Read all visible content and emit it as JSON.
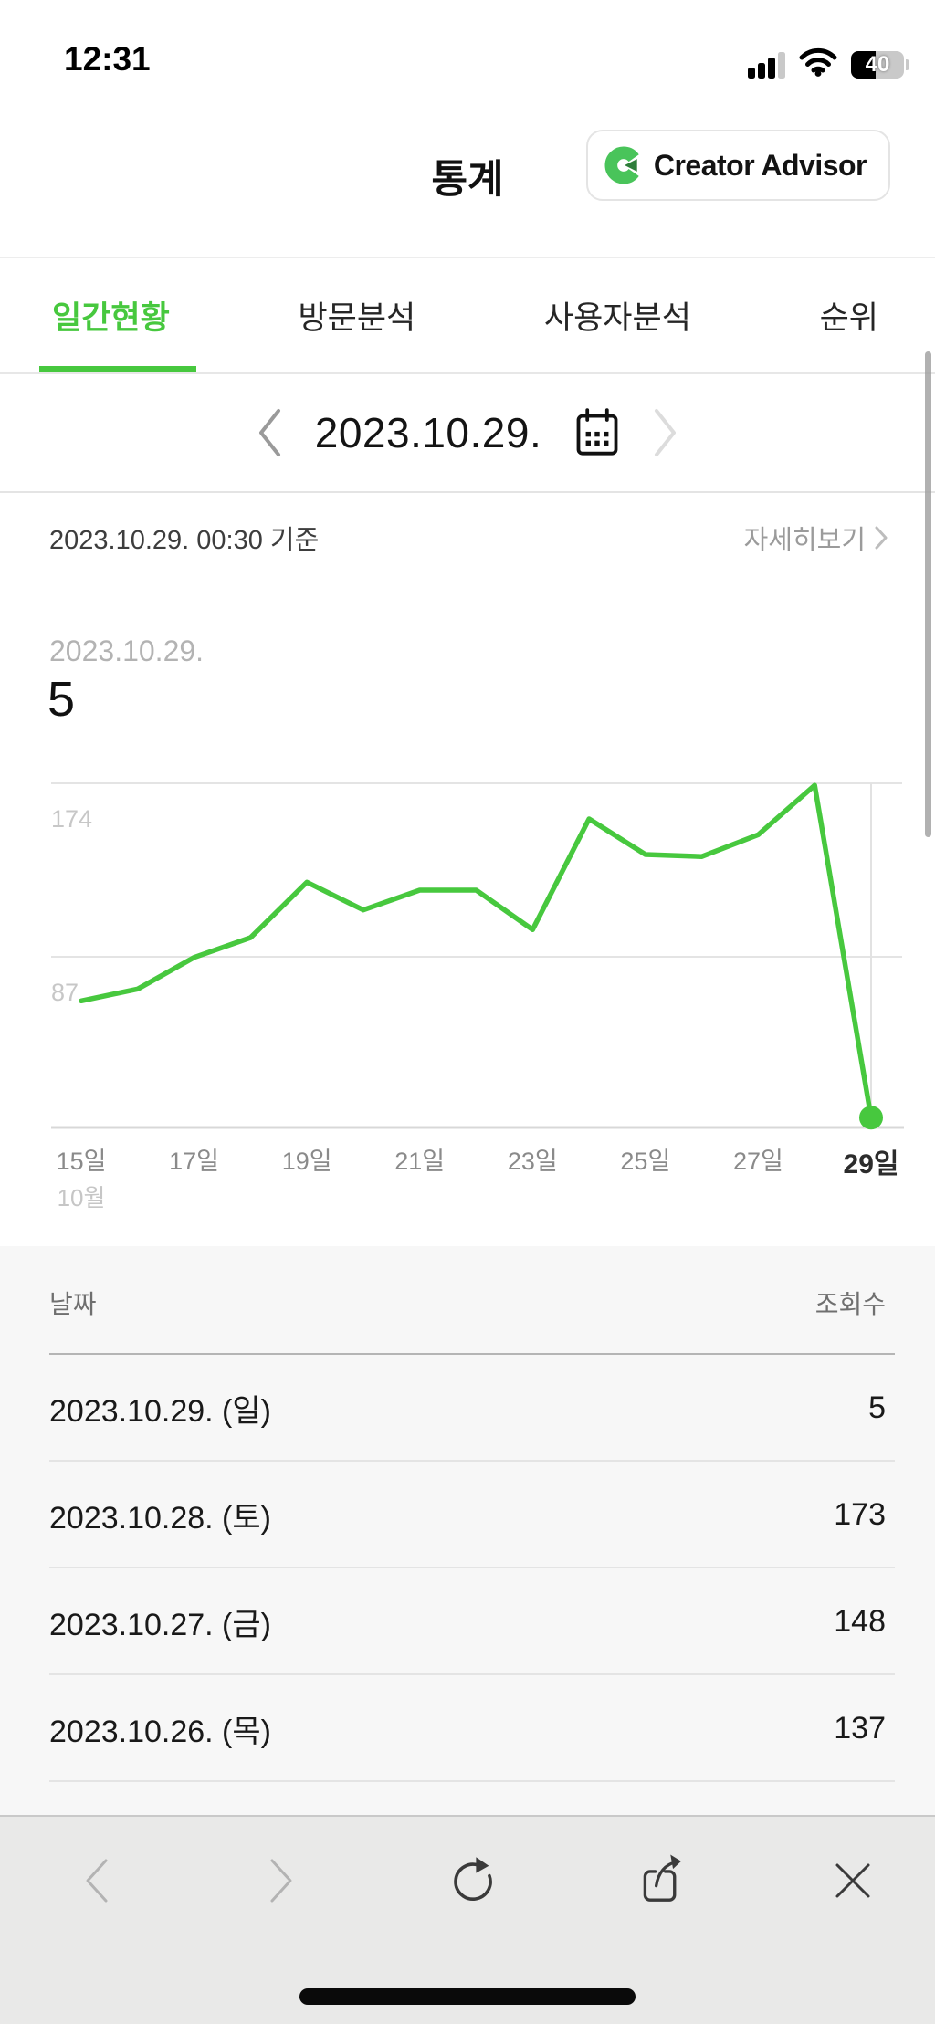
{
  "status_bar": {
    "time": "12:31",
    "battery_percent": "40"
  },
  "header": {
    "title": "통계",
    "advisor_button_label": "Creator Advisor"
  },
  "tabs": {
    "active_index": 0,
    "items": [
      {
        "label": "일간현황"
      },
      {
        "label": "방문분석"
      },
      {
        "label": "사용자분석"
      },
      {
        "label": "순위"
      }
    ]
  },
  "date_nav": {
    "date": "2023.10.29."
  },
  "info_bar": {
    "reference": "2023.10.29. 00:30 기준",
    "detail_link": "자세히보기"
  },
  "summary": {
    "date": "2023.10.29.",
    "value": "5"
  },
  "chart_data": {
    "type": "line",
    "x_days": [
      15,
      16,
      17,
      18,
      19,
      20,
      21,
      22,
      23,
      24,
      25,
      26,
      27,
      28,
      29
    ],
    "values": [
      64,
      70,
      86,
      96,
      124,
      110,
      120,
      120,
      100,
      156,
      138,
      137,
      148,
      173,
      5
    ],
    "x_tick_labels": [
      "15일",
      "17일",
      "19일",
      "21일",
      "23일",
      "25일",
      "27일",
      "29일"
    ],
    "month_label": "10월",
    "y_tick_labels": [
      "174",
      "87"
    ],
    "y_ticks": [
      174,
      87
    ],
    "ylim": [
      0,
      174
    ],
    "grid": "horizontal",
    "line_color": "#47c83e",
    "endpoint_marker": true
  },
  "table": {
    "columns": [
      "날짜",
      "조회수"
    ],
    "rows": [
      {
        "date": "2023.10.29. (일)",
        "views": "5"
      },
      {
        "date": "2023.10.28. (토)",
        "views": "173"
      },
      {
        "date": "2023.10.27. (금)",
        "views": "148"
      },
      {
        "date": "2023.10.26. (목)",
        "views": "137"
      }
    ]
  },
  "toolbar": {
    "icons": [
      "back",
      "forward",
      "reload",
      "share",
      "close"
    ]
  },
  "colors": {
    "accent": "#47c83e",
    "toolbar_bg": "#e9e9e8",
    "table_bg": "#f7f7f7"
  }
}
